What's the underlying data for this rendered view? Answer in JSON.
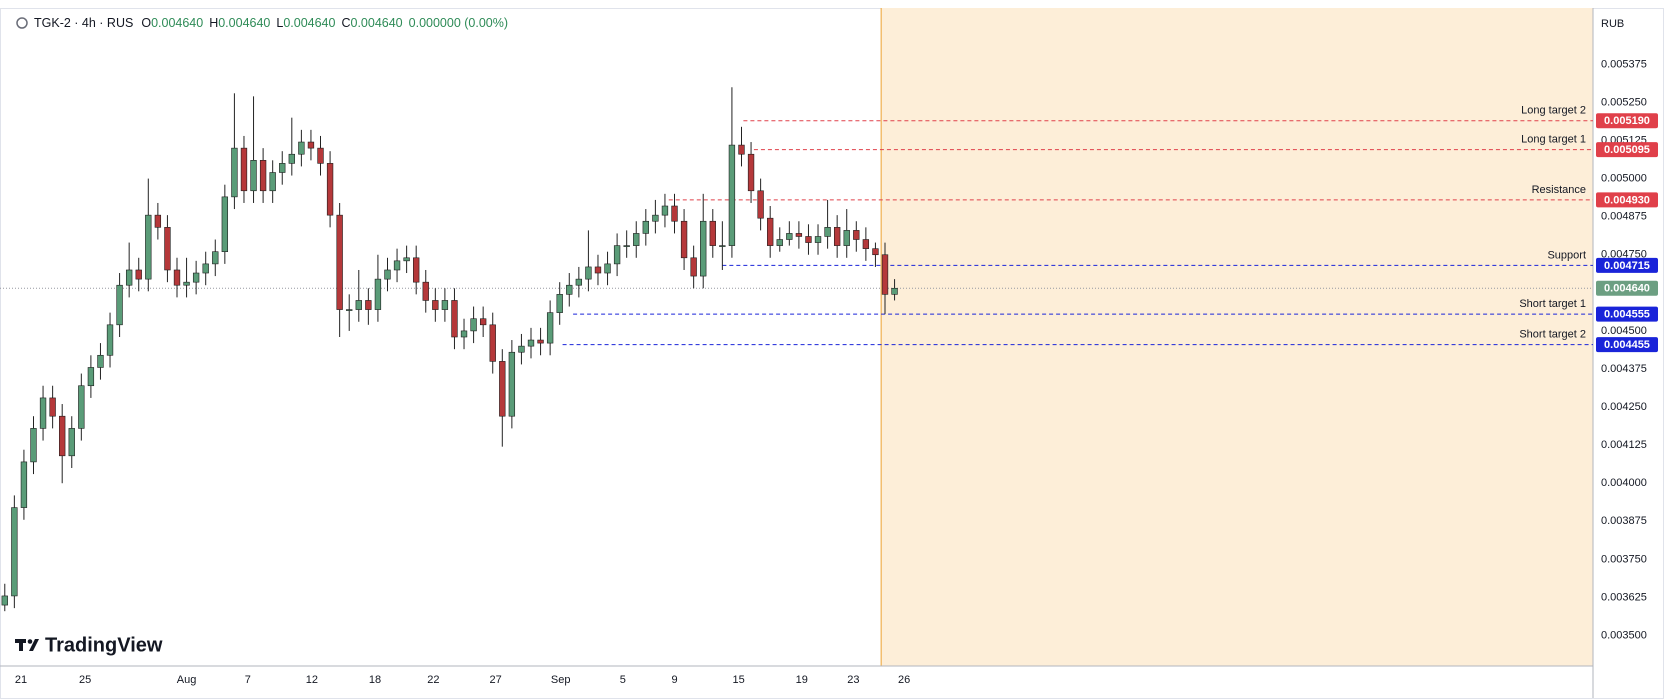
{
  "header": {
    "symbol": "TGK-2 · 4h · RUS",
    "ohlc": [
      {
        "key": "O",
        "value": "0.004640"
      },
      {
        "key": "H",
        "value": "0.004640"
      },
      {
        "key": "L",
        "value": "0.004640"
      },
      {
        "key": "C",
        "value": "0.004640"
      }
    ],
    "change": "0.000000 (0.00%)"
  },
  "currency": "RUB",
  "watermark": "TradingView",
  "chart_data": {
    "type": "candlestick",
    "up_color": "#5a9c78",
    "down_color": "#b5383a",
    "wick_color": "#222222",
    "open": [
      0.0036,
      0.00363,
      0.00392,
      0.00407,
      0.00418,
      0.00428,
      0.00422,
      0.00409,
      0.00418,
      0.00432,
      0.00438,
      0.00442,
      0.00452,
      0.00465,
      0.0047,
      0.00467,
      0.00488,
      0.00484,
      0.0047,
      0.00465,
      0.00466,
      0.00469,
      0.00472,
      0.00476,
      0.00494,
      0.0051,
      0.00496,
      0.00506,
      0.00496,
      0.00502,
      0.00505,
      0.00508,
      0.00512,
      0.0051,
      0.00505,
      0.00488,
      0.00457,
      0.00457,
      0.0046,
      0.00457,
      0.00467,
      0.0047,
      0.00473,
      0.00474,
      0.00466,
      0.0046,
      0.00457,
      0.0046,
      0.00448,
      0.0045,
      0.00454,
      0.00452,
      0.0044,
      0.00422,
      0.00443,
      0.00445,
      0.00447,
      0.00446,
      0.00456,
      0.00462,
      0.00465,
      0.00467,
      0.00471,
      0.00469,
      0.00472,
      0.00478,
      0.00478,
      0.00482,
      0.00486,
      0.00488,
      0.00491,
      0.00486,
      0.00474,
      0.00468,
      0.00486,
      0.00478,
      0.00478,
      0.00511,
      0.00508,
      0.00496,
      0.00487,
      0.00478,
      0.0048,
      0.00482,
      0.00481,
      0.00479,
      0.00481,
      0.00484,
      0.00478,
      0.00483,
      0.0048,
      0.00477,
      0.00475,
      0.00462
    ],
    "high": [
      0.00367,
      0.00396,
      0.00411,
      0.00422,
      0.00432,
      0.00432,
      0.00426,
      0.00422,
      0.00436,
      0.00442,
      0.00446,
      0.00456,
      0.00469,
      0.00479,
      0.00474,
      0.005,
      0.00492,
      0.00488,
      0.00474,
      0.00474,
      0.00473,
      0.00476,
      0.0048,
      0.00498,
      0.00528,
      0.00514,
      0.00527,
      0.0051,
      0.00506,
      0.00509,
      0.0052,
      0.00516,
      0.00516,
      0.00514,
      0.00509,
      0.00492,
      0.00462,
      0.0047,
      0.00464,
      0.00475,
      0.00474,
      0.00477,
      0.00478,
      0.00478,
      0.0047,
      0.00464,
      0.00464,
      0.00464,
      0.00454,
      0.00458,
      0.00458,
      0.00456,
      0.00444,
      0.00447,
      0.00449,
      0.00451,
      0.00451,
      0.0046,
      0.00466,
      0.00469,
      0.00471,
      0.00483,
      0.00475,
      0.00476,
      0.00482,
      0.00483,
      0.00486,
      0.0049,
      0.00493,
      0.00495,
      0.00495,
      0.0049,
      0.00478,
      0.00495,
      0.0049,
      0.00486,
      0.0053,
      0.00517,
      0.00512,
      0.005,
      0.00491,
      0.00484,
      0.00486,
      0.00486,
      0.00485,
      0.00485,
      0.00493,
      0.00488,
      0.0049,
      0.00486,
      0.00484,
      0.00479,
      0.00479,
      0.00467
    ],
    "low": [
      0.00358,
      0.00359,
      0.00388,
      0.00403,
      0.00414,
      0.00418,
      0.004,
      0.00405,
      0.00414,
      0.00428,
      0.00434,
      0.00438,
      0.00448,
      0.00461,
      0.00463,
      0.00463,
      0.0048,
      0.00466,
      0.00461,
      0.00461,
      0.00462,
      0.00465,
      0.00468,
      0.00472,
      0.0049,
      0.00492,
      0.00492,
      0.00492,
      0.00492,
      0.00498,
      0.00501,
      0.00504,
      0.00506,
      0.00501,
      0.00484,
      0.00448,
      0.0045,
      0.00453,
      0.00452,
      0.00453,
      0.00463,
      0.00466,
      0.00469,
      0.00462,
      0.00456,
      0.00453,
      0.00453,
      0.00444,
      0.00444,
      0.00446,
      0.00448,
      0.00436,
      0.00412,
      0.00418,
      0.00439,
      0.00441,
      0.00442,
      0.00442,
      0.00452,
      0.00458,
      0.00461,
      0.00463,
      0.00465,
      0.00465,
      0.00468,
      0.00474,
      0.00474,
      0.00478,
      0.00482,
      0.00484,
      0.00482,
      0.0047,
      0.00464,
      0.00464,
      0.00474,
      0.0047,
      0.00474,
      0.00504,
      0.00492,
      0.00483,
      0.00474,
      0.00476,
      0.00478,
      0.00477,
      0.00475,
      0.00475,
      0.00477,
      0.00474,
      0.00474,
      0.00476,
      0.00473,
      0.00471,
      0.004555,
      0.0046
    ],
    "close": [
      0.00363,
      0.00392,
      0.00407,
      0.00418,
      0.00428,
      0.00422,
      0.00409,
      0.00418,
      0.00432,
      0.00438,
      0.00442,
      0.00452,
      0.00465,
      0.0047,
      0.00467,
      0.00488,
      0.00484,
      0.0047,
      0.00465,
      0.00466,
      0.00469,
      0.00472,
      0.00476,
      0.00494,
      0.0051,
      0.00496,
      0.00506,
      0.00496,
      0.00502,
      0.00505,
      0.00508,
      0.00512,
      0.0051,
      0.00505,
      0.00488,
      0.00457,
      0.00457,
      0.0046,
      0.00457,
      0.00467,
      0.0047,
      0.00473,
      0.00474,
      0.00466,
      0.0046,
      0.00457,
      0.0046,
      0.00448,
      0.0045,
      0.00454,
      0.00452,
      0.0044,
      0.00422,
      0.00443,
      0.00445,
      0.00447,
      0.00446,
      0.00456,
      0.00462,
      0.00465,
      0.00467,
      0.00471,
      0.00469,
      0.00472,
      0.00478,
      0.00478,
      0.00482,
      0.00486,
      0.00488,
      0.00491,
      0.00486,
      0.00474,
      0.00468,
      0.00486,
      0.00478,
      0.00478,
      0.00511,
      0.00508,
      0.00496,
      0.00487,
      0.00478,
      0.0048,
      0.00482,
      0.00481,
      0.00479,
      0.00481,
      0.00484,
      0.00478,
      0.00483,
      0.0048,
      0.00477,
      0.00475,
      0.00462,
      0.00464
    ],
    "xlim": [
      -0.5,
      166
    ],
    "xticks": [
      {
        "value": 1.7,
        "label": "21"
      },
      {
        "value": 8.4,
        "label": "25"
      },
      {
        "value": 19,
        "label": "Aug"
      },
      {
        "value": 25.4,
        "label": "7"
      },
      {
        "value": 32.1,
        "label": "12"
      },
      {
        "value": 38.7,
        "label": "18"
      },
      {
        "value": 44.8,
        "label": "22"
      },
      {
        "value": 51.3,
        "label": "27"
      },
      {
        "value": 58.1,
        "label": "Sep"
      },
      {
        "value": 64.6,
        "label": "5"
      },
      {
        "value": 70,
        "label": "9"
      },
      {
        "value": 76.7,
        "label": "15"
      },
      {
        "value": 83.3,
        "label": "19"
      },
      {
        "value": 88.7,
        "label": "23"
      },
      {
        "value": 94,
        "label": "26"
      }
    ],
    "ylim": [
      0.0034,
      0.00556
    ],
    "yticks": [
      {
        "value": 0.005375,
        "label": "0.005375"
      },
      {
        "value": 0.00525,
        "label": "0.005250"
      },
      {
        "value": 0.005125,
        "label": "0.005125"
      },
      {
        "value": 0.005,
        "label": "0.005000"
      },
      {
        "value": 0.004875,
        "label": "0.004875"
      },
      {
        "value": 0.00475,
        "label": "0.004750"
      },
      {
        "value": 0.0045,
        "label": "0.004500"
      },
      {
        "value": 0.004375,
        "label": "0.004375"
      },
      {
        "value": 0.00425,
        "label": "0.004250"
      },
      {
        "value": 0.004125,
        "label": "0.004125"
      },
      {
        "value": 0.004,
        "label": "0.004000"
      },
      {
        "value": 0.003875,
        "label": "0.003875"
      },
      {
        "value": 0.00375,
        "label": "0.003750"
      },
      {
        "value": 0.003625,
        "label": "0.003625"
      },
      {
        "value": 0.0035,
        "label": "0.003500"
      }
    ],
    "highlight_from": 91.6,
    "highlight_color": "#fdeed8",
    "highlight_line_color": "#f0b050",
    "last_price": {
      "value": 0.00464,
      "label": "0.004640",
      "color": "#6c9f82"
    },
    "levels": [
      {
        "label": "Long target 2",
        "value": 0.00519,
        "value_label": "0.005190",
        "color": "#e0404a",
        "from": 77.2
      },
      {
        "label": "Long target 1",
        "value": 0.005095,
        "value_label": "0.005095",
        "color": "#e0404a",
        "from": 78.3
      },
      {
        "label": "Resistance",
        "value": 0.00493,
        "value_label": "0.004930",
        "color": "#e0404a",
        "from": 69.4
      },
      {
        "label": "Support",
        "value": 0.004715,
        "value_label": "0.004715",
        "color": "#1a24d9",
        "from": 75
      },
      {
        "label": "Short target 1",
        "value": 0.004555,
        "value_label": "0.004555",
        "color": "#1a24d9",
        "from": 59.4
      },
      {
        "label": "Short target 2",
        "value": 0.004455,
        "value_label": "0.004455",
        "color": "#1a24d9",
        "from": 58.3
      }
    ]
  }
}
